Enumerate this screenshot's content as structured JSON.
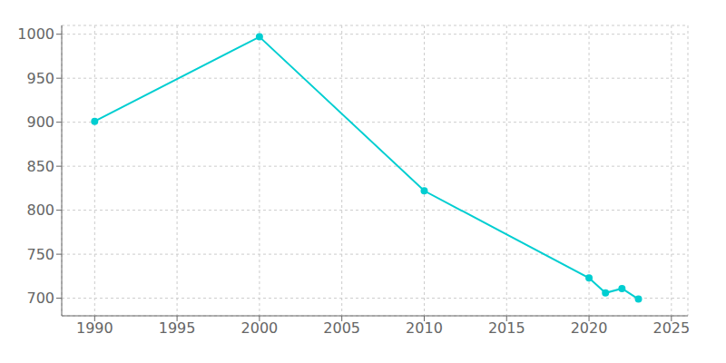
{
  "chart_data": {
    "type": "line",
    "x": [
      1990,
      2000,
      2010,
      2020,
      2021,
      2022,
      2023
    ],
    "values": [
      901,
      997,
      822,
      723,
      706,
      711,
      699
    ],
    "color": "#00CED1",
    "marker": "circle",
    "xlim": [
      1988,
      2026
    ],
    "xticks": [
      1990,
      1995,
      2000,
      2005,
      2010,
      2015,
      2020,
      2025
    ],
    "ylim": [
      680,
      1010
    ],
    "yticks": [
      700,
      750,
      800,
      850,
      900,
      950,
      1000
    ],
    "grid": true
  }
}
